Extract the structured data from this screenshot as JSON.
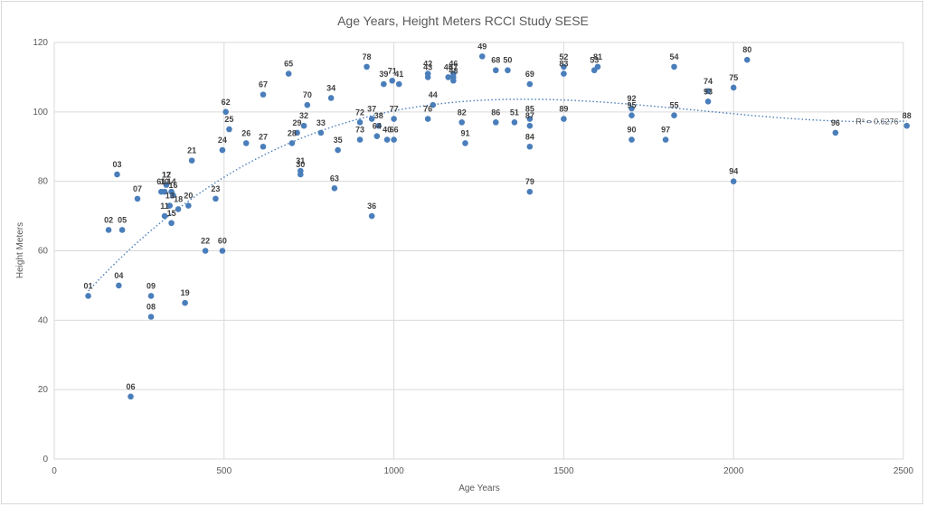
{
  "chart_data": {
    "type": "scatter",
    "title": "Age Years, Height Meters RCCI Study SESE",
    "xlabel": "Age Years",
    "ylabel": "Height Meters",
    "xlim": [
      0,
      2500
    ],
    "ylim": [
      0,
      120
    ],
    "x_ticks": [
      0,
      500,
      1000,
      1500,
      2000,
      2500
    ],
    "y_ticks": [
      0,
      20,
      40,
      60,
      80,
      100,
      120
    ],
    "grid": "major gridlines on both axes",
    "marker_color": "#4a7ebb",
    "trendline": {
      "type": "polynomial",
      "style": "dotted",
      "color": "#4a7ebb",
      "r_squared_label": "R² = 0.6276"
    },
    "points": [
      {
        "label": "01",
        "x": 100,
        "y": 47
      },
      {
        "label": "02",
        "x": 160,
        "y": 66
      },
      {
        "label": "03",
        "x": 185,
        "y": 82
      },
      {
        "label": "04",
        "x": 190,
        "y": 50
      },
      {
        "label": "05",
        "x": 200,
        "y": 66
      },
      {
        "label": "06",
        "x": 225,
        "y": 18
      },
      {
        "label": "07",
        "x": 245,
        "y": 75
      },
      {
        "label": "08",
        "x": 285,
        "y": 41
      },
      {
        "label": "09",
        "x": 285,
        "y": 47
      },
      {
        "label": "10",
        "x": 325,
        "y": 77
      },
      {
        "label": "11",
        "x": 325,
        "y": 70
      },
      {
        "label": "12",
        "x": 330,
        "y": 79
      },
      {
        "label": "13",
        "x": 340,
        "y": 73
      },
      {
        "label": "14",
        "x": 345,
        "y": 77
      },
      {
        "label": "15",
        "x": 345,
        "y": 68
      },
      {
        "label": "16",
        "x": 350,
        "y": 76
      },
      {
        "label": "17",
        "x": 330,
        "y": 79
      },
      {
        "label": "18",
        "x": 365,
        "y": 72
      },
      {
        "label": "19",
        "x": 385,
        "y": 45
      },
      {
        "label": "20",
        "x": 395,
        "y": 73
      },
      {
        "label": "21",
        "x": 405,
        "y": 86
      },
      {
        "label": "22",
        "x": 445,
        "y": 60
      },
      {
        "label": "23",
        "x": 475,
        "y": 75
      },
      {
        "label": "24",
        "x": 495,
        "y": 89
      },
      {
        "label": "25",
        "x": 515,
        "y": 95
      },
      {
        "label": "26",
        "x": 565,
        "y": 91
      },
      {
        "label": "27",
        "x": 615,
        "y": 90
      },
      {
        "label": "28",
        "x": 700,
        "y": 91
      },
      {
        "label": "29",
        "x": 715,
        "y": 94
      },
      {
        "label": "30",
        "x": 725,
        "y": 82
      },
      {
        "label": "31",
        "x": 725,
        "y": 83
      },
      {
        "label": "32",
        "x": 735,
        "y": 96
      },
      {
        "label": "33",
        "x": 785,
        "y": 94
      },
      {
        "label": "34",
        "x": 815,
        "y": 104
      },
      {
        "label": "35",
        "x": 835,
        "y": 89
      },
      {
        "label": "36",
        "x": 935,
        "y": 70
      },
      {
        "label": "37",
        "x": 935,
        "y": 98
      },
      {
        "label": "38",
        "x": 955,
        "y": 96
      },
      {
        "label": "39",
        "x": 970,
        "y": 108
      },
      {
        "label": "40",
        "x": 980,
        "y": 92
      },
      {
        "label": "41",
        "x": 1015,
        "y": 108
      },
      {
        "label": "42",
        "x": 1100,
        "y": 111
      },
      {
        "label": "43",
        "x": 1100,
        "y": 110
      },
      {
        "label": "44",
        "x": 1115,
        "y": 102
      },
      {
        "label": "45",
        "x": 1160,
        "y": 110
      },
      {
        "label": "46",
        "x": 1175,
        "y": 111
      },
      {
        "label": "47",
        "x": 1175,
        "y": 110
      },
      {
        "label": "48",
        "x": 1175,
        "y": 109
      },
      {
        "label": "49",
        "x": 1260,
        "y": 116
      },
      {
        "label": "50",
        "x": 1335,
        "y": 112
      },
      {
        "label": "51",
        "x": 1355,
        "y": 97
      },
      {
        "label": "52",
        "x": 1500,
        "y": 113
      },
      {
        "label": "53",
        "x": 1590,
        "y": 112
      },
      {
        "label": "54",
        "x": 1825,
        "y": 113
      },
      {
        "label": "55",
        "x": 1825,
        "y": 99
      },
      {
        "label": "60",
        "x": 495,
        "y": 60
      },
      {
        "label": "61",
        "x": 315,
        "y": 77
      },
      {
        "label": "62",
        "x": 505,
        "y": 100
      },
      {
        "label": "63",
        "x": 825,
        "y": 78
      },
      {
        "label": "64",
        "x": 950,
        "y": 93
      },
      {
        "label": "65",
        "x": 690,
        "y": 111
      },
      {
        "label": "66",
        "x": 1000,
        "y": 92
      },
      {
        "label": "67",
        "x": 615,
        "y": 105
      },
      {
        "label": "68",
        "x": 1300,
        "y": 112
      },
      {
        "label": "69",
        "x": 1400,
        "y": 108
      },
      {
        "label": "70",
        "x": 745,
        "y": 102
      },
      {
        "label": "71",
        "x": 995,
        "y": 109
      },
      {
        "label": "72",
        "x": 900,
        "y": 97
      },
      {
        "label": "73",
        "x": 900,
        "y": 92
      },
      {
        "label": "74",
        "x": 1925,
        "y": 106
      },
      {
        "label": "75",
        "x": 2000,
        "y": 107
      },
      {
        "label": "76",
        "x": 1100,
        "y": 98
      },
      {
        "label": "77",
        "x": 1000,
        "y": 98
      },
      {
        "label": "78",
        "x": 920,
        "y": 113
      },
      {
        "label": "79",
        "x": 1400,
        "y": 77
      },
      {
        "label": "80",
        "x": 2040,
        "y": 115
      },
      {
        "label": "81",
        "x": 1600,
        "y": 113
      },
      {
        "label": "82",
        "x": 1200,
        "y": 97
      },
      {
        "label": "83",
        "x": 1500,
        "y": 111
      },
      {
        "label": "84",
        "x": 1400,
        "y": 90
      },
      {
        "label": "85",
        "x": 1400,
        "y": 98
      },
      {
        "label": "86",
        "x": 1300,
        "y": 97
      },
      {
        "label": "87",
        "x": 1400,
        "y": 96
      },
      {
        "label": "88",
        "x": 2510,
        "y": 96
      },
      {
        "label": "89",
        "x": 1500,
        "y": 98
      },
      {
        "label": "90",
        "x": 1700,
        "y": 92
      },
      {
        "label": "91",
        "x": 1210,
        "y": 91
      },
      {
        "label": "92",
        "x": 1700,
        "y": 101
      },
      {
        "label": "93",
        "x": 1925,
        "y": 103
      },
      {
        "label": "94",
        "x": 2000,
        "y": 80
      },
      {
        "label": "95",
        "x": 1700,
        "y": 99
      },
      {
        "label": "96",
        "x": 2300,
        "y": 94
      },
      {
        "label": "97",
        "x": 1800,
        "y": 92
      }
    ]
  }
}
